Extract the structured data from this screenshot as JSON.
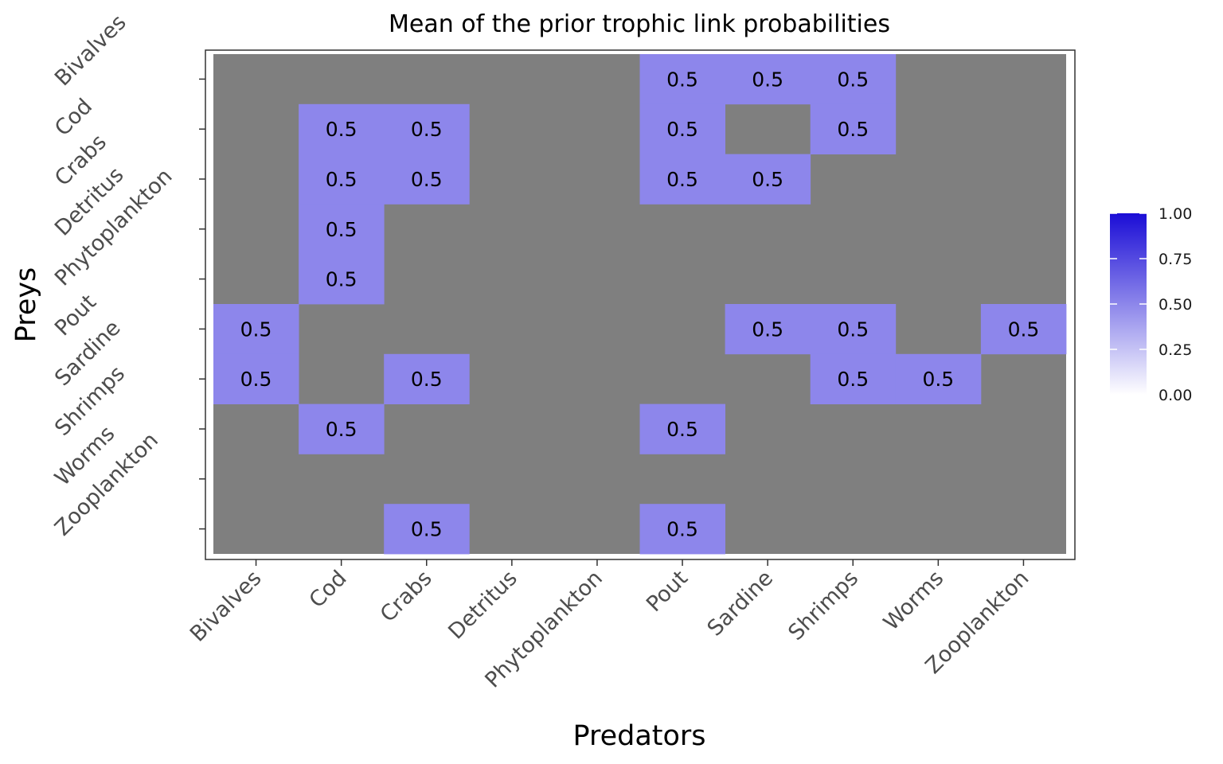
{
  "chart_data": {
    "type": "heatmap",
    "title": "Mean of the prior trophic link probabilities",
    "xlabel": "Predators",
    "ylabel": "Preys",
    "x_categories": [
      "Bivalves",
      "Cod",
      "Crabs",
      "Detritus",
      "Phytoplankton",
      "Pout",
      "Sardine",
      "Shrimps",
      "Worms",
      "Zooplankton"
    ],
    "y_categories": [
      "Bivalves",
      "Cod",
      "Crabs",
      "Detritus",
      "Phytoplankton",
      "Pout",
      "Sardine",
      "Shrimps",
      "Worms",
      "Zooplankton"
    ],
    "cells": [
      {
        "predator": "Pout",
        "prey": "Bivalves",
        "value": 0.5
      },
      {
        "predator": "Sardine",
        "prey": "Bivalves",
        "value": 0.5
      },
      {
        "predator": "Shrimps",
        "prey": "Bivalves",
        "value": 0.5
      },
      {
        "predator": "Cod",
        "prey": "Cod",
        "value": 0.5
      },
      {
        "predator": "Crabs",
        "prey": "Cod",
        "value": 0.5
      },
      {
        "predator": "Pout",
        "prey": "Cod",
        "value": 0.5
      },
      {
        "predator": "Shrimps",
        "prey": "Cod",
        "value": 0.5
      },
      {
        "predator": "Cod",
        "prey": "Crabs",
        "value": 0.5
      },
      {
        "predator": "Crabs",
        "prey": "Crabs",
        "value": 0.5
      },
      {
        "predator": "Pout",
        "prey": "Crabs",
        "value": 0.5
      },
      {
        "predator": "Sardine",
        "prey": "Crabs",
        "value": 0.5
      },
      {
        "predator": "Cod",
        "prey": "Detritus",
        "value": 0.5
      },
      {
        "predator": "Cod",
        "prey": "Phytoplankton",
        "value": 0.5
      },
      {
        "predator": "Bivalves",
        "prey": "Pout",
        "value": 0.5
      },
      {
        "predator": "Sardine",
        "prey": "Pout",
        "value": 0.5
      },
      {
        "predator": "Shrimps",
        "prey": "Pout",
        "value": 0.5
      },
      {
        "predator": "Zooplankton",
        "prey": "Pout",
        "value": 0.5
      },
      {
        "predator": "Bivalves",
        "prey": "Sardine",
        "value": 0.5
      },
      {
        "predator": "Crabs",
        "prey": "Sardine",
        "value": 0.5
      },
      {
        "predator": "Shrimps",
        "prey": "Sardine",
        "value": 0.5
      },
      {
        "predator": "Worms",
        "prey": "Sardine",
        "value": 0.5
      },
      {
        "predator": "Cod",
        "prey": "Shrimps",
        "value": 0.5
      },
      {
        "predator": "Pout",
        "prey": "Shrimps",
        "value": 0.5
      },
      {
        "predator": "Crabs",
        "prey": "Zooplankton",
        "value": 0.5
      },
      {
        "predator": "Pout",
        "prey": "Zooplankton",
        "value": 0.5
      }
    ],
    "cell_label_text": "0.5",
    "missing_color": "#7f7f7f",
    "color_scale": {
      "low": "#ffffff",
      "high": "#1a0dd6",
      "min": 0,
      "max": 1
    },
    "legend": {
      "position": "right",
      "ticks": [
        0.0,
        0.25,
        0.5,
        0.75,
        1.0
      ],
      "tick_labels": [
        "0.00",
        "0.25",
        "0.50",
        "0.75",
        "1.00"
      ]
    }
  }
}
